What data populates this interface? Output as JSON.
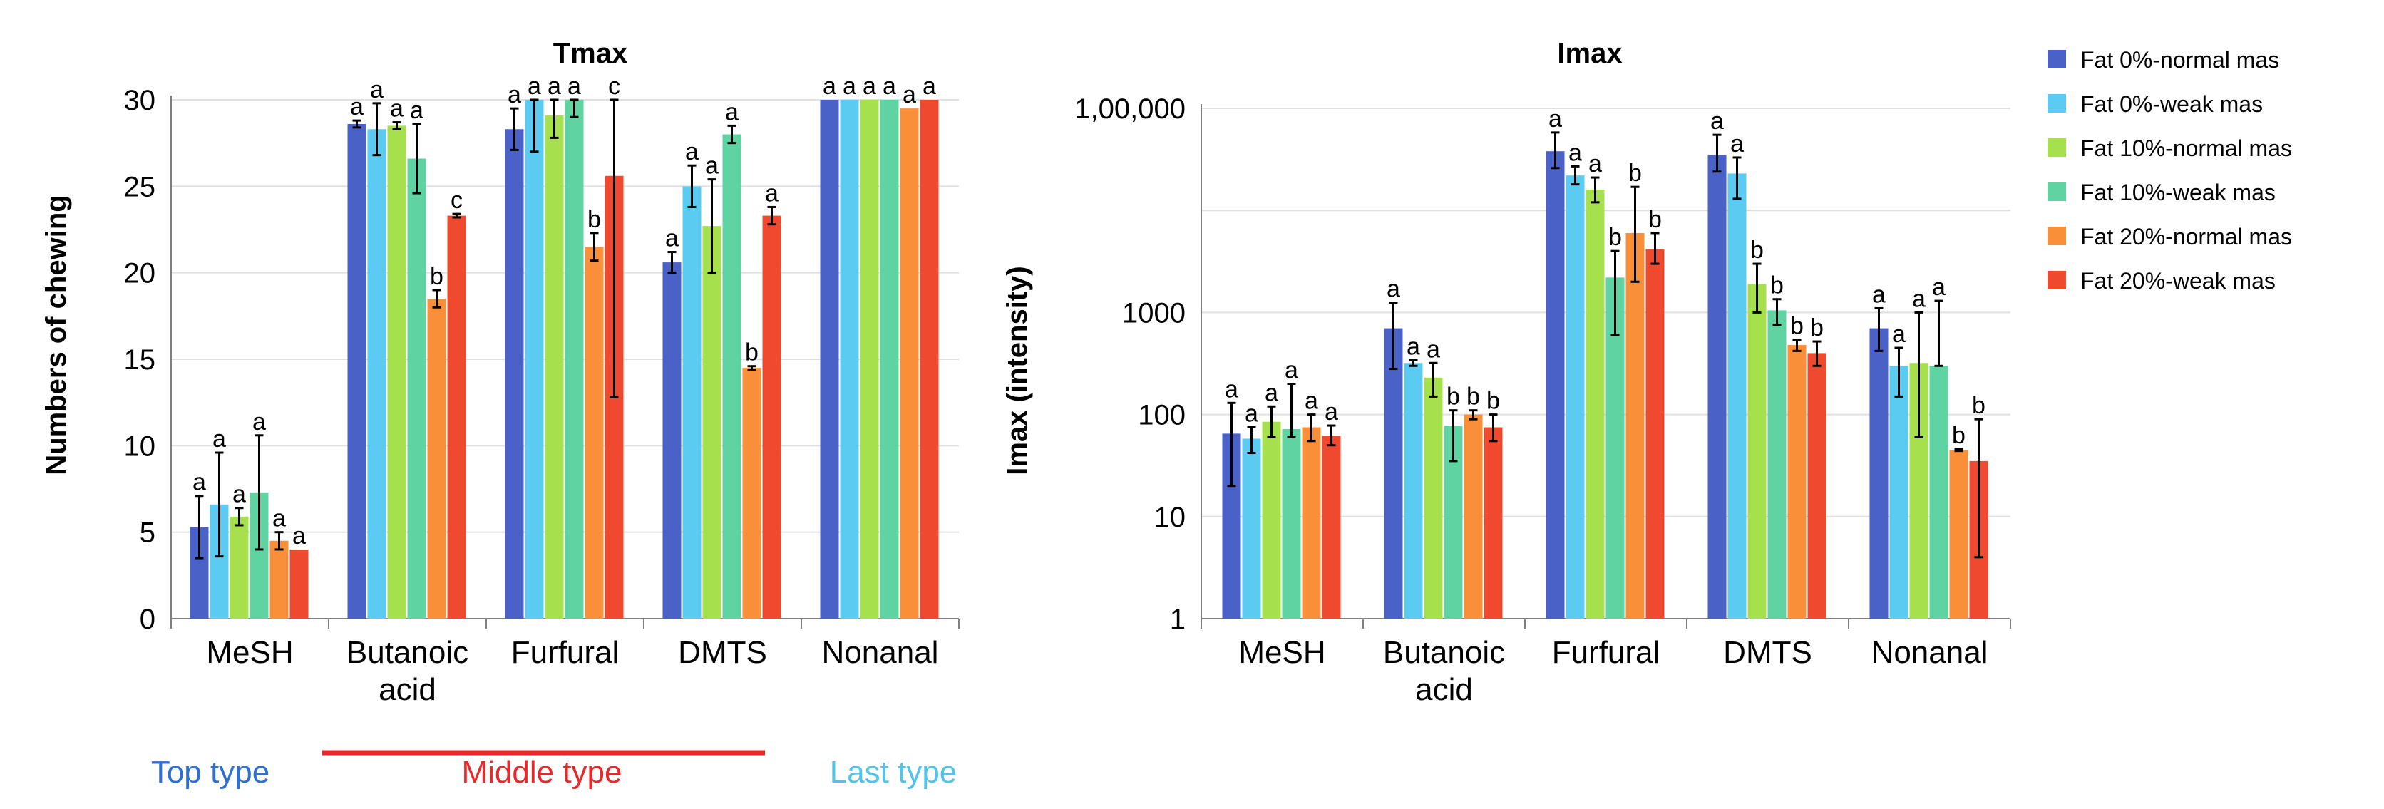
{
  "chart_data": [
    {
      "type": "bar",
      "title": "Tmax",
      "xlabel": "",
      "ylabel": "Numbers of chewing",
      "ylim": [
        0,
        30
      ],
      "yticks": [
        0,
        5,
        10,
        15,
        20,
        25,
        30
      ],
      "yscale": "linear",
      "categories": [
        "MeSH",
        "Butanoic acid",
        "Furfural",
        "DMTS",
        "Nonanal"
      ],
      "series": [
        {
          "name": "Fat 0%-normal mas",
          "values": [
            5.3,
            28.6,
            28.3,
            20.6,
            30
          ],
          "errors": [
            1.8,
            0.2,
            1.2,
            0.6,
            0
          ],
          "letters": [
            "a",
            "a",
            "a",
            "a",
            "a"
          ]
        },
        {
          "name": "Fat 0%-weak mas",
          "values": [
            6.6,
            28.3,
            30,
            25.0,
            30
          ],
          "errors": [
            3.0,
            1.5,
            3.0,
            1.2,
            0
          ],
          "letters": [
            "a",
            "a",
            "a",
            "a",
            "a"
          ]
        },
        {
          "name": "Fat 10%-normal mas",
          "values": [
            5.9,
            28.5,
            29.1,
            22.7,
            30
          ],
          "errors": [
            0.5,
            0.2,
            1.3,
            2.7,
            0
          ],
          "letters": [
            "a",
            "a",
            "a",
            "a",
            "a"
          ]
        },
        {
          "name": "Fat 10%-weak mas",
          "values": [
            7.3,
            26.6,
            30,
            28.0,
            30
          ],
          "errors": [
            3.3,
            2.0,
            1.0,
            0.5,
            0
          ],
          "letters": [
            "a",
            "a",
            "a",
            "a",
            "a"
          ]
        },
        {
          "name": "Fat 20%-normal mas",
          "values": [
            4.5,
            18.5,
            21.5,
            14.5,
            29.5
          ],
          "errors": [
            0.5,
            0.5,
            0.8,
            0.1,
            0
          ],
          "letters": [
            "a",
            "b",
            "b",
            "b",
            "a"
          ]
        },
        {
          "name": "Fat 20%-weak mas",
          "values": [
            4.0,
            23.3,
            25.6,
            23.3,
            30
          ],
          "errors": [
            0,
            0.1,
            12.8,
            0.5,
            0
          ],
          "letters": [
            "a",
            "c",
            "c",
            "a",
            "a"
          ]
        }
      ]
    },
    {
      "type": "bar",
      "title": "Imax",
      "xlabel": "",
      "ylabel": "Imax (intensity)",
      "ylim": [
        1,
        100000
      ],
      "yticks": [
        1,
        10,
        100,
        1000,
        100000
      ],
      "ytick_labels": [
        "1",
        "10",
        "100",
        "1000",
        "1,00,000"
      ],
      "yscale": "log",
      "categories": [
        "MeSH",
        "Butanoic acid",
        "Furfural",
        "DMTS",
        "Nonanal"
      ],
      "series": [
        {
          "name": "Fat 0%-normal mas",
          "values": [
            65,
            700,
            38000,
            35000,
            700
          ],
          "err_low": [
            20,
            280,
            26000,
            24000,
            420
          ],
          "err_high": [
            130,
            1250,
            58000,
            55000,
            1100
          ],
          "letters": [
            "a",
            "a",
            "a",
            "a",
            "a"
          ]
        },
        {
          "name": "Fat 0%-weak mas",
          "values": [
            58,
            320,
            22000,
            23000,
            300
          ],
          "err_low": [
            42,
            300,
            18000,
            13000,
            150
          ],
          "err_high": [
            75,
            340,
            27000,
            33000,
            450
          ],
          "letters": [
            "a",
            "a",
            "a",
            "a",
            "a"
          ]
        },
        {
          "name": "Fat 10%-normal mas",
          "values": [
            85,
            230,
            16000,
            1900,
            320
          ],
          "err_low": [
            60,
            150,
            12000,
            1000,
            60
          ],
          "err_high": [
            120,
            320,
            21000,
            3000,
            1000
          ],
          "letters": [
            "a",
            "a",
            "a",
            "b",
            "a"
          ]
        },
        {
          "name": "Fat 10%-weak mas",
          "values": [
            72,
            78,
            2200,
            1050,
            300
          ],
          "err_low": [
            60,
            35,
            600,
            760,
            300
          ],
          "err_high": [
            200,
            110,
            4000,
            1350,
            1300
          ],
          "letters": [
            "a",
            "b",
            "b",
            "b",
            "a"
          ]
        },
        {
          "name": "Fat 20%-normal mas",
          "values": [
            75,
            100,
            6000,
            480,
            45
          ],
          "err_low": [
            55,
            90,
            2000,
            420,
            44
          ],
          "err_high": [
            100,
            110,
            17000,
            540,
            46
          ],
          "letters": [
            "a",
            "b",
            "b",
            "b",
            "b"
          ]
        },
        {
          "name": "Fat 20%-weak mas",
          "values": [
            62,
            75,
            4200,
            400,
            35
          ],
          "err_low": [
            50,
            55,
            3000,
            300,
            4
          ],
          "err_high": [
            78,
            100,
            6000,
            520,
            90
          ],
          "letters": [
            "a",
            "b",
            "b",
            "b",
            "b"
          ]
        }
      ]
    }
  ],
  "legend": {
    "placement": "top-right",
    "items": [
      {
        "label": "Fat 0%-normal mas",
        "color": "#4a62c8"
      },
      {
        "label": "Fat 0%-weak mas",
        "color": "#5ccbf2"
      },
      {
        "label": "Fat 10%-normal mas",
        "color": "#a6e04c"
      },
      {
        "label": "Fat 10%-weak mas",
        "color": "#5fd3a2"
      },
      {
        "label": "Fat 20%-normal mas",
        "color": "#f98f39"
      },
      {
        "label": "Fat 20%-weak mas",
        "color": "#ef4a30"
      }
    ]
  },
  "type_labels": [
    {
      "text": "Top type",
      "color": "#2e6fd2"
    },
    {
      "text": "Middle type",
      "color": "#e8282b"
    },
    {
      "text": "Last type",
      "color": "#52c4ea"
    }
  ]
}
